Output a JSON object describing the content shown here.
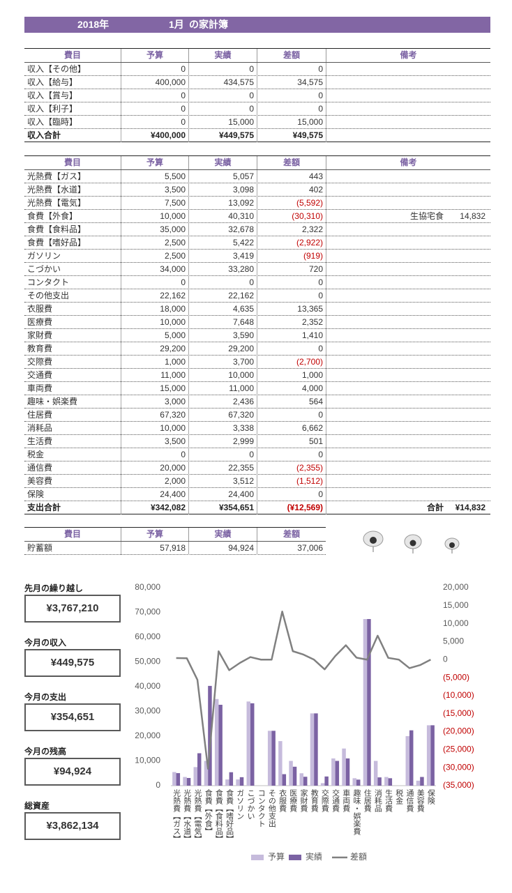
{
  "header": {
    "year": "2018年",
    "month": "1月",
    "title": "の家計簿"
  },
  "income_table": {
    "columns": [
      "費目",
      "予算",
      "実績",
      "差額",
      "備考"
    ],
    "rows": [
      [
        "収入【その他】",
        "0",
        "0",
        "0"
      ],
      [
        "収入【給与】",
        "400,000",
        "434,575",
        "34,575"
      ],
      [
        "収入【賞与】",
        "0",
        "0",
        "0"
      ],
      [
        "収入【利子】",
        "0",
        "0",
        "0"
      ],
      [
        "収入【臨時】",
        "0",
        "15,000",
        "15,000"
      ]
    ],
    "total": [
      "収入合計",
      "¥400,000",
      "¥449,575",
      "¥49,575"
    ]
  },
  "expense_table": {
    "columns": [
      "費目",
      "予算",
      "実績",
      "差額",
      "備考"
    ],
    "rows": [
      [
        "光熱費【ガス】",
        "5,500",
        "5,057",
        "443"
      ],
      [
        "光熱費【水道】",
        "3,500",
        "3,098",
        "402"
      ],
      [
        "光熱費【電気】",
        "7,500",
        "13,092",
        "(5,592)"
      ],
      [
        "食費【外食】",
        "10,000",
        "40,310",
        "(30,310)",
        "生協宅食",
        "14,832"
      ],
      [
        "食費【食料品】",
        "35,000",
        "32,678",
        "2,322"
      ],
      [
        "食費【嗜好品】",
        "2,500",
        "5,422",
        "(2,922)"
      ],
      [
        "ガソリン",
        "2,500",
        "3,419",
        "(919)"
      ],
      [
        "こづかい",
        "34,000",
        "33,280",
        "720"
      ],
      [
        "コンタクト",
        "0",
        "0",
        "0"
      ],
      [
        "その他支出",
        "22,162",
        "22,162",
        "0"
      ],
      [
        "衣服費",
        "18,000",
        "4,635",
        "13,365"
      ],
      [
        "医療費",
        "10,000",
        "7,648",
        "2,352"
      ],
      [
        "家財費",
        "5,000",
        "3,590",
        "1,410"
      ],
      [
        "教育費",
        "29,200",
        "29,200",
        "0"
      ],
      [
        "交際費",
        "1,000",
        "3,700",
        "(2,700)"
      ],
      [
        "交通費",
        "11,000",
        "10,000",
        "1,000"
      ],
      [
        "車両費",
        "15,000",
        "11,000",
        "4,000"
      ],
      [
        "趣味・娯楽費",
        "3,000",
        "2,436",
        "564"
      ],
      [
        "住居費",
        "67,320",
        "67,320",
        "0"
      ],
      [
        "消耗品",
        "10,000",
        "3,338",
        "6,662"
      ],
      [
        "生活費",
        "3,500",
        "2,999",
        "501"
      ],
      [
        "税金",
        "0",
        "0",
        "0"
      ],
      [
        "通信費",
        "20,000",
        "22,355",
        "(2,355)"
      ],
      [
        "美容費",
        "2,000",
        "3,512",
        "(1,512)"
      ],
      [
        "保険",
        "24,400",
        "24,400",
        "0"
      ]
    ],
    "total": [
      "支出合計",
      "¥342,082",
      "¥354,651",
      "(¥12,569)",
      "合計",
      "¥14,832"
    ]
  },
  "savings_table": {
    "columns": [
      "費目",
      "予算",
      "実績",
      "差額"
    ],
    "rows": [
      [
        "貯蓄額",
        "57,918",
        "94,924",
        "37,006"
      ]
    ]
  },
  "summary": [
    {
      "label": "先月の繰り越し",
      "value": "¥3,767,210"
    },
    {
      "label": "今月の収入",
      "value": "¥449,575"
    },
    {
      "label": "今月の支出",
      "value": "¥354,651"
    },
    {
      "label": "今月の残高",
      "value": "¥94,924"
    },
    {
      "label": "総資産",
      "value": "¥3,862,134"
    }
  ],
  "chart_data": {
    "type": "bar",
    "categories": [
      "光熱費【ガス】",
      "光熱費【水道】",
      "光熱費【電気】",
      "食費【外食】",
      "食費【食料品】",
      "食費【嗜好品】",
      "ガソリン",
      "こづかい",
      "コンタクト",
      "その他支出",
      "衣服費",
      "医療費",
      "家財費",
      "教育費",
      "交際費",
      "交通費",
      "車両費",
      "趣味・娯楽費",
      "住居費",
      "消耗品",
      "生活費",
      "税金",
      "通信費",
      "美容費",
      "保険"
    ],
    "series": [
      {
        "name": "予算",
        "type": "bar",
        "color": "#c6bbdc",
        "values": [
          5500,
          3500,
          7500,
          10000,
          35000,
          2500,
          2500,
          34000,
          0,
          22162,
          18000,
          10000,
          5000,
          29200,
          1000,
          11000,
          15000,
          3000,
          67320,
          10000,
          3500,
          0,
          20000,
          2000,
          24400
        ]
      },
      {
        "name": "実績",
        "type": "bar",
        "color": "#7b62a3",
        "values": [
          5057,
          3098,
          13092,
          40310,
          32678,
          5422,
          3419,
          33280,
          0,
          22162,
          4635,
          7648,
          3590,
          29200,
          3700,
          10000,
          11000,
          2436,
          67320,
          3338,
          2999,
          0,
          22355,
          3512,
          24400
        ]
      },
      {
        "name": "差額",
        "type": "line",
        "axis": "y2",
        "color": "#808080",
        "values": [
          443,
          402,
          -5592,
          -30310,
          2322,
          -2922,
          -919,
          720,
          0,
          0,
          13365,
          2352,
          1410,
          0,
          -2700,
          1000,
          4000,
          564,
          0,
          6662,
          501,
          0,
          -2355,
          -1512,
          0
        ]
      }
    ],
    "ylim": [
      0,
      80000
    ],
    "yticks": [
      0,
      {
        "value": 10000,
        "label": "10,000"
      },
      {
        "value": 20000,
        "label": "20,000"
      },
      {
        "value": 30000,
        "label": "30,000"
      },
      {
        "value": 40000,
        "label": "40,000"
      },
      {
        "value": 50000,
        "label": "50,000"
      },
      {
        "value": 60000,
        "label": "60,000"
      },
      {
        "value": 70000,
        "label": "70,000"
      },
      {
        "value": 80000,
        "label": "80,000"
      }
    ],
    "y2lim": [
      -35000,
      20000
    ],
    "y2ticks": [
      {
        "value": 20000,
        "label": "20,000"
      },
      {
        "value": 15000,
        "label": "15,000"
      },
      {
        "value": 10000,
        "label": "10,000"
      },
      {
        "value": 5000,
        "label": "5,000"
      },
      0,
      {
        "value": -5000,
        "label": "(5,000)"
      },
      {
        "value": -10000,
        "label": "(10,000)"
      },
      {
        "value": -15000,
        "label": "(15,000)"
      },
      {
        "value": -20000,
        "label": "(20,000)"
      },
      {
        "value": -25000,
        "label": "(25,000)"
      },
      {
        "value": -30000,
        "label": "(30,000)"
      },
      {
        "value": -35000,
        "label": "(35,000)"
      }
    ],
    "legend": "bottom"
  }
}
